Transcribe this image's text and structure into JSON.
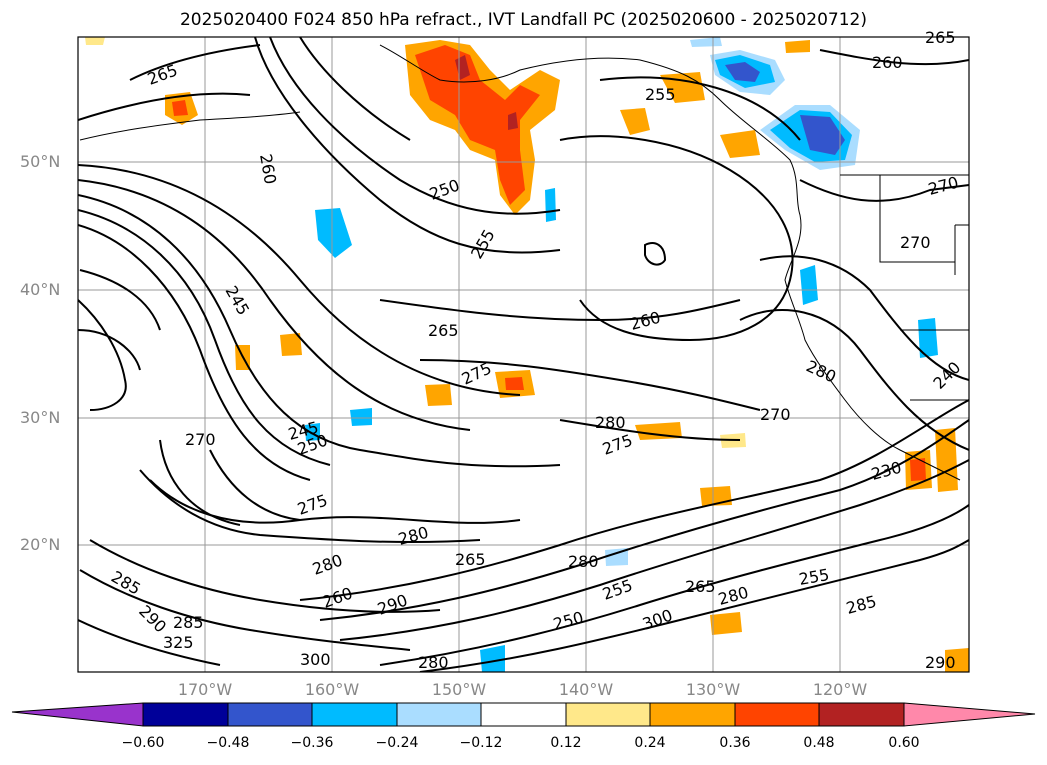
{
  "title": "2025020400 F024 850 hPa refract., IVT Landfall PC (2025020600 - 2025020712)",
  "map": {
    "lat_labels": [
      "50°N",
      "40°N",
      "30°N",
      "20°N"
    ],
    "lon_labels": [
      "170°W",
      "160°W",
      "150°W",
      "140°W",
      "130°W",
      "120°W"
    ],
    "contour_labels": [
      "265",
      "260",
      "265",
      "260",
      "255",
      "250",
      "255",
      "265",
      "260",
      "270",
      "270",
      "245",
      "250",
      "245",
      "275",
      "280",
      "275",
      "270",
      "280",
      "270",
      "275",
      "280",
      "260",
      "280",
      "265",
      "290",
      "300",
      "285",
      "290",
      "285",
      "255",
      "230",
      "280",
      "285",
      "240",
      "265",
      "290",
      "280",
      "300",
      "325",
      "250",
      "255",
      "280"
    ]
  },
  "colorbar": {
    "ticks": [
      "−0.60",
      "−0.48",
      "−0.36",
      "−0.24",
      "−0.12",
      "0.12",
      "0.24",
      "0.36",
      "0.48",
      "0.60"
    ],
    "colors": [
      "#9933cc",
      "#000099",
      "#3355cc",
      "#00bbff",
      "#aaddff",
      "#ffffff",
      "#ffe88a",
      "#ffa500",
      "#ff4400",
      "#b22222",
      "#ff88aa"
    ]
  }
}
